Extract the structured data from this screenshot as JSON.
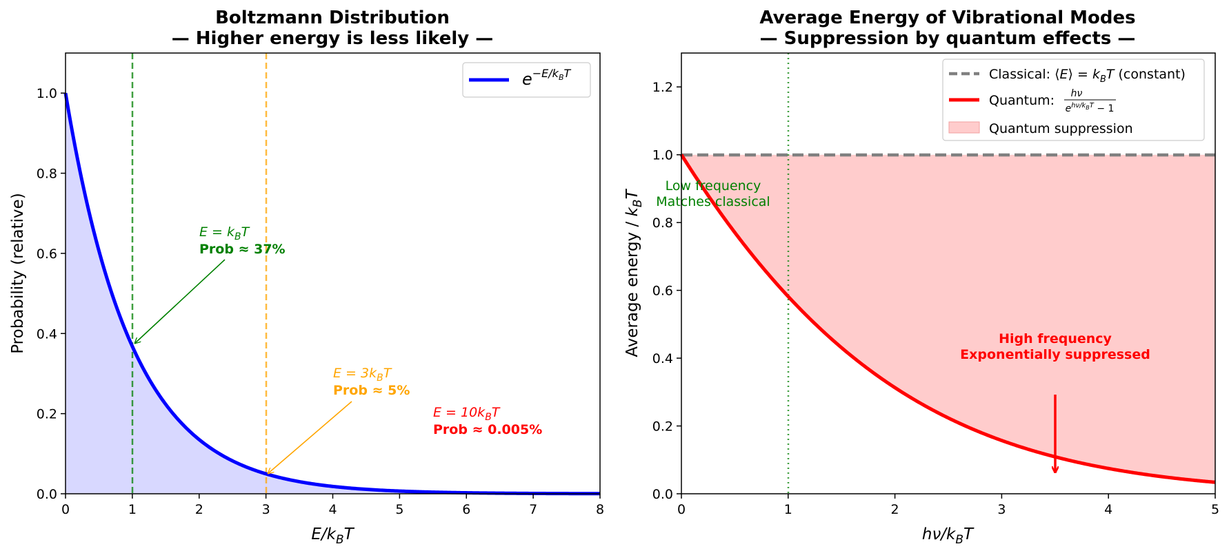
{
  "charts": {
    "left": {
      "title_line1": "Boltzmann Distribution",
      "title_line2": "— Higher energy is less likely —",
      "ylabel": "Probability (relative)",
      "legend": "e^{−E/k_BT}",
      "ann1_a": "E = k_BT",
      "ann1_b": "Prob ≈ 37%",
      "ann2_a": "E = 3k_BT",
      "ann2_b": "Prob ≈ 5%",
      "ann3_a": "E = 10k_BT",
      "ann3_b": "Prob ≈ 0.005%"
    },
    "right": {
      "title_line1": "Average Energy of Vibrational Modes",
      "title_line2": "— Suppression by quantum effects —",
      "legend_classical": "Classical: ⟨E⟩ = k_BT (constant)",
      "legend_quantum": "Quantum: hν/(e^{hν/k_BT} − 1)",
      "legend_fill": "Quantum suppression",
      "ann_low_1": "Low frequency",
      "ann_low_2": "Matches classical",
      "ann_high_1": "High frequency",
      "ann_high_2": "Exponentially suppressed"
    }
  },
  "colors": {
    "blue": "#0000ff",
    "blue_fill": "#d8d8ff",
    "green": "#008000",
    "orange": "#ffa500",
    "red": "#ff0000",
    "red_fill": "#ffcccc",
    "gray": "#808080"
  },
  "chart_data": [
    {
      "type": "line",
      "title": "Boltzmann Distribution — Higher energy is less likely —",
      "xlabel": "E/k_BT",
      "ylabel": "Probability (relative)",
      "xlim": [
        0,
        8
      ],
      "ylim": [
        0,
        1.1
      ],
      "xticks": [
        0,
        1,
        2,
        3,
        4,
        5,
        6,
        7,
        8
      ],
      "yticks": [
        0.0,
        0.2,
        0.4,
        0.6,
        0.8,
        1.0
      ],
      "series": [
        {
          "name": "e^{−E/k_BT}",
          "function": "exp(-x)",
          "color": "#0000ff",
          "fill_below": true
        }
      ],
      "vlines": [
        {
          "x": 1,
          "color": "#008000",
          "style": "dashed"
        },
        {
          "x": 3,
          "color": "#ffa500",
          "style": "dashed"
        }
      ],
      "annotations": [
        {
          "text": "E = k_BT / Prob ≈ 37%",
          "text_xy": [
            2.0,
            0.6
          ],
          "arrow_to": [
            1,
            0.368
          ],
          "color": "#008000"
        },
        {
          "text": "E = 3k_BT / Prob ≈ 5%",
          "text_xy": [
            4.0,
            0.25
          ],
          "arrow_to": [
            3,
            0.05
          ],
          "color": "#ffa500"
        },
        {
          "text": "E = 10k_BT / Prob ≈ 0.005%",
          "text_xy": [
            5.5,
            0.15
          ],
          "color": "#ff0000"
        }
      ],
      "legend": "top-right",
      "grid": false
    },
    {
      "type": "line",
      "title": "Average Energy of Vibrational Modes — Suppression by quantum effects —",
      "xlabel": "hν/k_BT",
      "ylabel": "Average energy / k_BT",
      "xlim": [
        0,
        5
      ],
      "ylim": [
        0,
        1.3
      ],
      "xticks": [
        0,
        1,
        2,
        3,
        4,
        5
      ],
      "yticks": [
        0.0,
        0.2,
        0.4,
        0.6,
        0.8,
        1.0,
        1.2
      ],
      "series": [
        {
          "name": "Classical: ⟨E⟩ = k_BT (constant)",
          "function": "1",
          "color": "#808080",
          "style": "dashed"
        },
        {
          "name": "Quantum: hν/(e^{hν/k_BT} − 1)",
          "function": "x/(exp(x)-1)",
          "color": "#ff0000"
        },
        {
          "name": "Quantum suppression",
          "type": "area_between",
          "color": "#ffcccc"
        }
      ],
      "vlines": [
        {
          "x": 1,
          "color": "#008000",
          "style": "dotted"
        }
      ],
      "annotations": [
        {
          "text": "Low frequency / Matches classical",
          "text_xy": [
            0.3,
            0.88
          ],
          "color": "#008000"
        },
        {
          "text": "High frequency / Exponentially suppressed",
          "text_xy": [
            3.5,
            0.44
          ],
          "color": "#ff0000"
        },
        {
          "arrow_from": [
            3.5,
            0.3
          ],
          "arrow_to": [
            3.5,
            0.05
          ],
          "color": "#ff0000"
        }
      ],
      "legend": "top-right",
      "grid": false
    }
  ]
}
